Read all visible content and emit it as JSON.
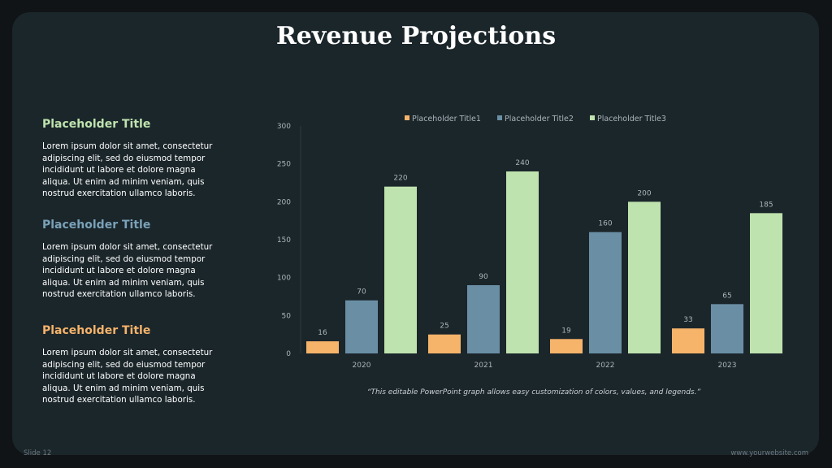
{
  "slide": {
    "title": "Revenue Projections",
    "slide_label": "Slide 12",
    "website": "www.yourwebsite.com"
  },
  "text_blocks": [
    {
      "title": "Placeholder Title",
      "body": "Lorem ipsum dolor sit amet, consectetur\nadipiscing elit, sed do eiusmod tempor\nincididunt ut labore et dolore magna\naliqua. Ut enim ad minim veniam, quis\nnostrud exercitation ullamco laboris.",
      "color": "#bfe3ae"
    },
    {
      "title": "Placeholder Title",
      "body": "Lorem ipsum dolor sit amet, consectetur\nadipiscing elit, sed do eiusmod tempor\nincididunt ut labore et dolore magna\naliqua. Ut enim ad minim veniam, quis\nnostrud exercitation ullamco laboris.",
      "color": "#7aa2b8"
    },
    {
      "title": "Placeholder Title",
      "body": "Lorem ipsum dolor sit amet, consectetur\nadipiscing elit, sed do eiusmod tempor\nincididunt ut labore et dolore magna\naliqua. Ut enim ad minim veniam, quis\nnostrud exercitation ullamco laboris.",
      "color": "#f6b36a"
    }
  ],
  "caption": "“This editable PowerPoint graph allows easy customization of colors, values, and legends.”",
  "chart_data": {
    "type": "bar",
    "categories": [
      "2020",
      "2021",
      "2022",
      "2023"
    ],
    "series": [
      {
        "name": "Placeholder Title1",
        "values": [
          16,
          25,
          19,
          33
        ],
        "color": "#f6b36a"
      },
      {
        "name": "Placeholder Title2",
        "values": [
          70,
          90,
          160,
          65
        ],
        "color": "#6a8fa5"
      },
      {
        "name": "Placeholder Title3",
        "values": [
          220,
          240,
          200,
          185
        ],
        "color": "#bfe3ae"
      }
    ],
    "ylim": [
      0,
      300
    ],
    "yticks": [
      0,
      50,
      100,
      150,
      200,
      250,
      300
    ],
    "data_labels": true,
    "legend": "top",
    "grid": false,
    "xlabel": "",
    "ylabel": ""
  }
}
